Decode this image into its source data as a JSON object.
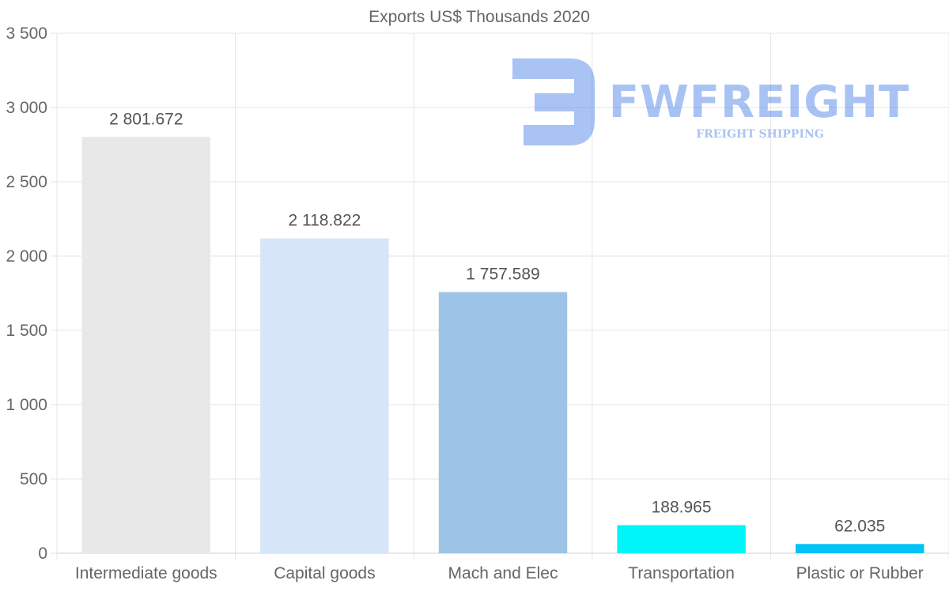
{
  "chart_data": {
    "type": "bar",
    "title": "Exports US$ Thousands 2020",
    "categories": [
      "Intermediate goods",
      "Capital goods",
      "Mach and Elec",
      "Transportation",
      "Plastic or Rubber"
    ],
    "values": [
      2801.672,
      2118.822,
      1757.589,
      188.965,
      62.035
    ],
    "value_labels": [
      "2 801.672",
      "2 118.822",
      "1 757.589",
      "188.965",
      "62.035"
    ],
    "colors": [
      "#e8e8e8",
      "#d6e6f8",
      "#9dc4e6",
      "#00f5f8",
      "#00c2f6"
    ],
    "ylim": [
      0,
      3500
    ],
    "yticks": [
      0,
      500,
      1000,
      1500,
      2000,
      2500,
      3000,
      3500
    ],
    "ytick_labels": [
      "0",
      "500",
      "1 000",
      "1 500",
      "2 000",
      "2 500",
      "3 000",
      "3 500"
    ],
    "xlabel": "",
    "ylabel": "",
    "grid": true,
    "legend": "none"
  },
  "watermark": {
    "brand": "FWFREIGHT",
    "tagline": "FREIGHT SHIPPING",
    "color": "#3f7be6"
  }
}
